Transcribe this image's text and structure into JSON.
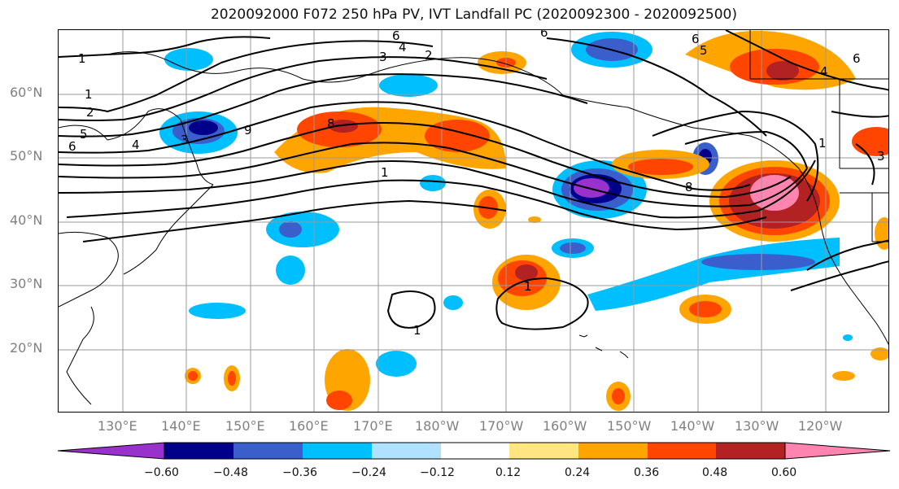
{
  "title": "2020092000 F072 250 hPa PV, IVT Landfall PC (2020092300 - 2020092500)",
  "lat_labels": [
    "60°N",
    "50°N",
    "40°N",
    "30°N",
    "20°N"
  ],
  "lon_labels": [
    "130°E",
    "140°E",
    "150°E",
    "160°E",
    "170°E",
    "180°W",
    "170°W",
    "160°W",
    "150°W",
    "140°W",
    "130°W",
    "120°W"
  ],
  "contour_labels": [
    "1",
    "1",
    "2",
    "5",
    "6",
    "4",
    "3",
    "3",
    "4",
    "2",
    "6",
    "6",
    "6",
    "5",
    "6",
    "4",
    "8",
    "1",
    "9",
    "8",
    "1",
    "1",
    "3",
    "1"
  ],
  "colorbar": {
    "tick_labels": [
      "−0.60",
      "−0.48",
      "−0.36",
      "−0.24",
      "−0.12",
      "0.12",
      "0.24",
      "0.36",
      "0.48",
      "0.60"
    ],
    "colors": [
      "#9932cc",
      "#00008b",
      "#3a5fcd",
      "#00bfff",
      "#b0e2ff",
      "#ffffff",
      "#ffe680",
      "#ffa500",
      "#ff4500",
      "#b22222",
      "#ff85b0"
    ]
  },
  "colors": {
    "grid": "#9a9a9a",
    "coast": "#000000",
    "contour": "#000000"
  }
}
